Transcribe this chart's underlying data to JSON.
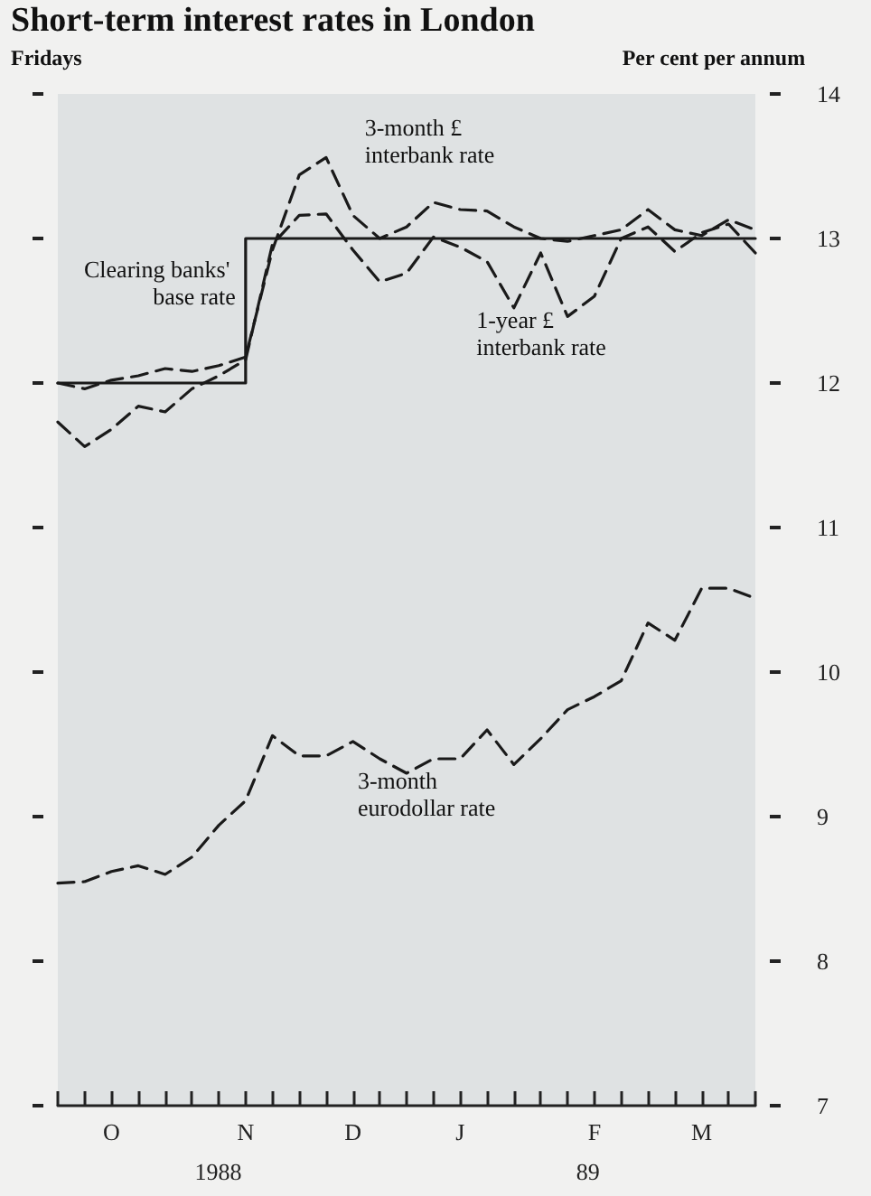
{
  "chart_data": {
    "type": "line",
    "title": "Short-term interest rates in London",
    "xlabel": "Fridays",
    "ylabel": "Per cent per annum",
    "categories": [
      null,
      null,
      "O",
      null,
      null,
      null,
      null,
      "N",
      null,
      null,
      null,
      "D",
      null,
      null,
      null,
      "J",
      null,
      null,
      null,
      null,
      "F",
      null,
      null,
      null,
      "M",
      null,
      null
    ],
    "series": [
      {
        "name": "Clearing banks' base rate",
        "type": "step",
        "color": "#1a1a1a",
        "line_style": "solid",
        "values": [
          12,
          12,
          12,
          12,
          12,
          12,
          12,
          13,
          13,
          13,
          13,
          13,
          13,
          13,
          13,
          13,
          13,
          13,
          13,
          13,
          13,
          13,
          13,
          13,
          13,
          13,
          13
        ]
      },
      {
        "name": "3-month £ interbank rate",
        "color": "#1a1a1a",
        "line_style": "dashed",
        "values": [
          12.0,
          11.96,
          12.02,
          12.05,
          12.1,
          12.08,
          12.12,
          12.18,
          12.92,
          13.44,
          13.56,
          13.16,
          13.0,
          13.08,
          13.25,
          13.2,
          13.19,
          13.08,
          13.0,
          12.98,
          13.02,
          13.06,
          13.2,
          13.06,
          13.02,
          13.13,
          13.06
        ]
      },
      {
        "name": "1-year £ interbank rate",
        "color": "#1a1a1a",
        "line_style": "dashed",
        "values": [
          11.73,
          11.56,
          11.68,
          11.84,
          11.8,
          11.96,
          12.05,
          12.16,
          12.96,
          13.16,
          13.17,
          12.92,
          12.7,
          12.76,
          13.01,
          12.94,
          12.84,
          12.52,
          12.9,
          12.46,
          12.6,
          13.0,
          13.08,
          12.91,
          13.04,
          13.1,
          12.9
        ]
      },
      {
        "name": "3-month eurodollar rate",
        "color": "#1a1a1a",
        "line_style": "dashed",
        "values": [
          8.54,
          8.55,
          8.62,
          8.66,
          8.6,
          8.72,
          8.94,
          9.11,
          9.56,
          9.42,
          9.42,
          9.52,
          9.4,
          9.3,
          9.4,
          9.4,
          9.6,
          9.36,
          9.54,
          9.74,
          9.83,
          9.94,
          10.34,
          10.22,
          10.58,
          10.58,
          10.51
        ]
      }
    ],
    "ylim": [
      7,
      14
    ],
    "yticks": [
      7,
      8,
      9,
      10,
      11,
      12,
      13,
      14
    ],
    "annotations": [
      "1988",
      "89"
    ],
    "grid": false,
    "legend": false,
    "marker": "none"
  }
}
